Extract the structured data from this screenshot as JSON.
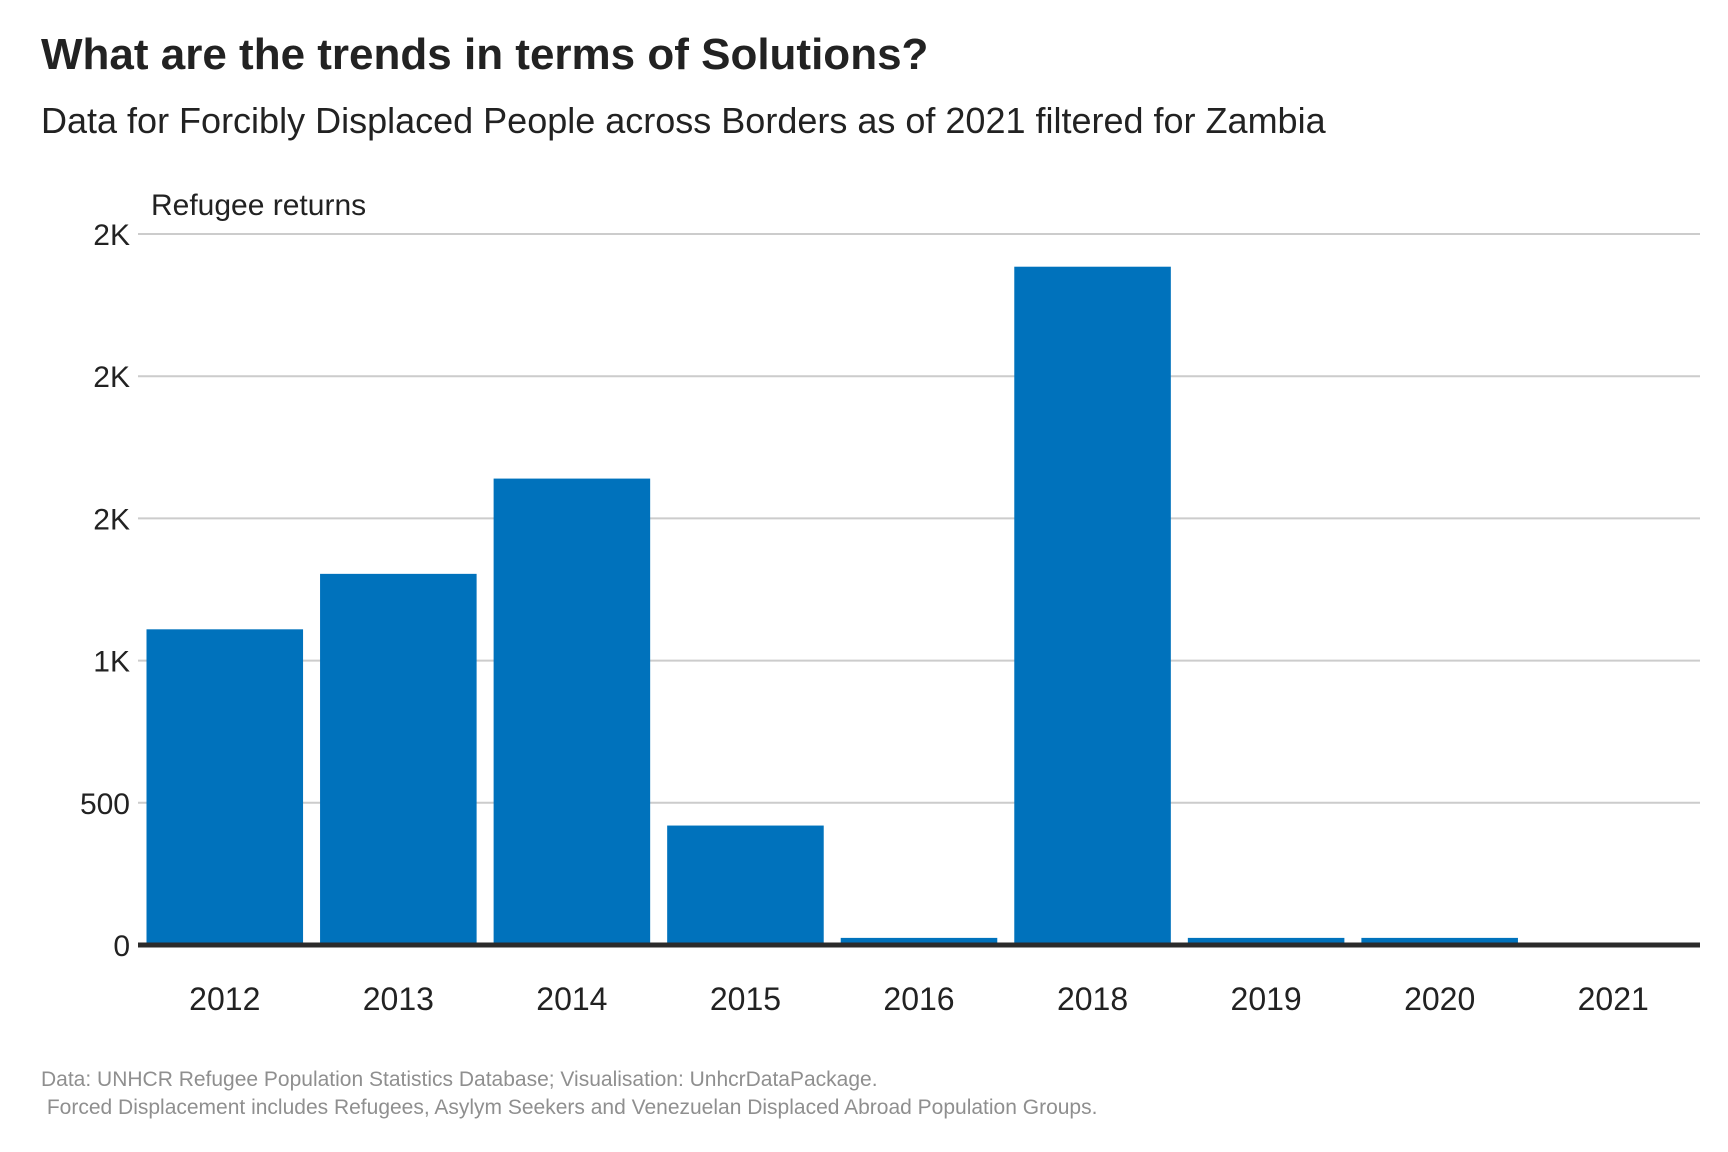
{
  "title": "What are the trends in terms of Solutions?",
  "subtitle": "Data for Forcibly Displaced People across Borders as of 2021 filtered for Zambia",
  "caption_line1": "Data: UNHCR Refugee Population Statistics Database; Visualisation: UnhcrDataPackage.",
  "caption_line2": " Forced Displacement includes Refugees, Asylym Seekers and Venezuelan Displaced Abroad Population Groups.",
  "colors": {
    "bar": "#0072bc",
    "grid": "#cccccc",
    "axis": "#2b2b2b",
    "text": "#222222",
    "caption": "#8f8f8f"
  },
  "chart_data": {
    "type": "bar",
    "title": "What are the trends in terms of Solutions?",
    "subtitle": "Data for Forcibly Displaced People across Borders as of 2021 filtered for Zambia",
    "ylabel": "Refugee returns",
    "xlabel": "",
    "categories": [
      "2012",
      "2013",
      "2014",
      "2015",
      "2016",
      "2018",
      "2019",
      "2020",
      "2021"
    ],
    "values": [
      1110,
      1305,
      1640,
      420,
      25,
      2385,
      25,
      25,
      5
    ],
    "ylim": [
      0,
      2500
    ],
    "yticks": [
      0,
      500,
      1000,
      1500,
      2000,
      2500
    ],
    "ytick_labels": [
      "0",
      "500",
      "1K",
      "2K",
      "2K",
      "2K"
    ],
    "grid": true,
    "legend": "none"
  }
}
